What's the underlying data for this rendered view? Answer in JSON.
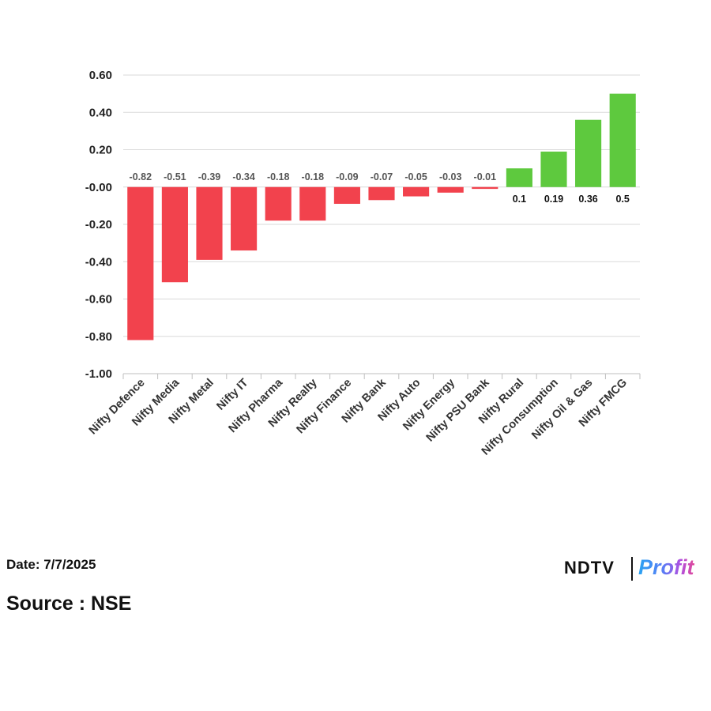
{
  "chart_data": {
    "type": "bar",
    "categories": [
      "Nifty Defence",
      "Nifty Media",
      "Nifty Metal",
      "Nifty IT",
      "Nifty Pharma",
      "Nifty Realty",
      "Nifty Finance",
      "Nifty Bank",
      "Nifty Auto",
      "Nifty Energy",
      "Nifty PSU Bank",
      "Nifty Rural",
      "Nifty Consumption",
      "Nifty Oil & Gas",
      "Nifty FMCG"
    ],
    "values": [
      -0.82,
      -0.51,
      -0.39,
      -0.34,
      -0.18,
      -0.18,
      -0.09,
      -0.07,
      -0.05,
      -0.03,
      -0.01,
      0.1,
      0.19,
      0.36,
      0.5
    ],
    "data_labels": [
      "-0.82",
      "-0.51",
      "-0.39",
      "-0.34",
      "-0.18",
      "-0.18",
      "-0.09",
      "-0.07",
      "-0.05",
      "-0.03",
      "-0.01",
      "0.1",
      "0.19",
      "0.36",
      "0.5"
    ],
    "y_ticks": [
      "0.60",
      "0.40",
      "0.20",
      "-0.00",
      "-0.20",
      "-0.40",
      "-0.60",
      "-0.80",
      "-1.00"
    ],
    "ylim": [
      -1.0,
      0.6
    ],
    "title": "",
    "xlabel": "",
    "ylabel": "",
    "grid": true,
    "legend": "none",
    "colors": {
      "negative": "#f2424d",
      "positive": "#5ec93e",
      "negative_label": "#555555",
      "positive_label": "#111111",
      "grid": "#d9d9d9"
    }
  },
  "footer": {
    "date": "Date: 7/7/2025",
    "source": "Source : NSE"
  },
  "logo": {
    "ndtv": "NDTV",
    "profit": "Profit"
  }
}
